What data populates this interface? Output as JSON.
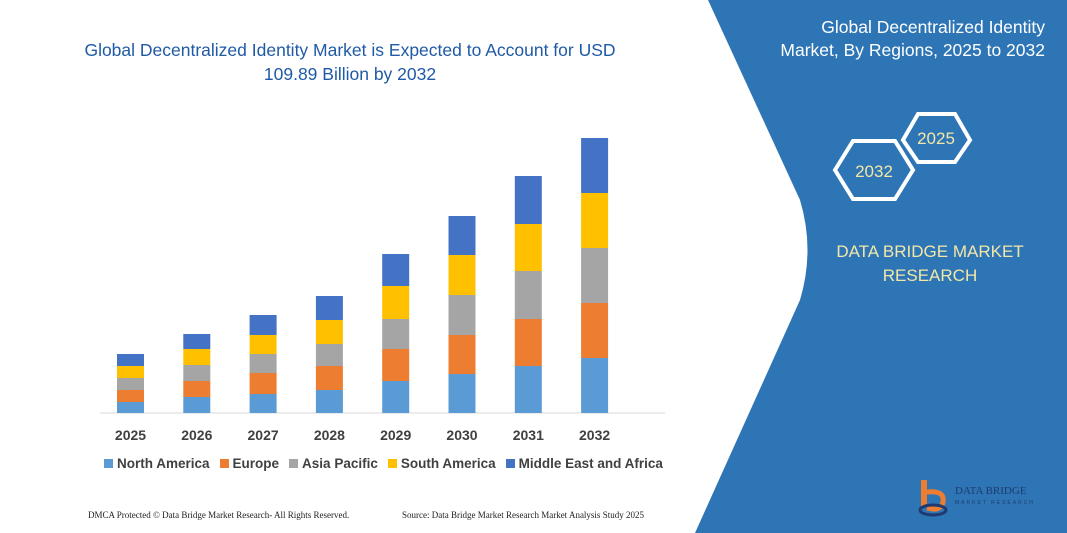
{
  "chart_data": {
    "type": "bar",
    "stacked": true,
    "title": "Global Decentralized Identity Market is Expected to Account for USD 109.89 Billion by 2032",
    "categories": [
      "2025",
      "2026",
      "2027",
      "2028",
      "2029",
      "2030",
      "2031",
      "2032"
    ],
    "series": [
      {
        "name": "North America",
        "color": "#5b9bd5",
        "values": [
          11,
          16,
          19,
          23,
          32,
          39,
          47,
          55
        ]
      },
      {
        "name": "Europe",
        "color": "#ed7d31",
        "values": [
          12,
          16,
          21,
          24,
          32,
          39,
          47,
          55
        ]
      },
      {
        "name": "Asia Pacific",
        "color": "#a5a5a5",
        "values": [
          12,
          16,
          19,
          22,
          30,
          40,
          48,
          55
        ]
      },
      {
        "name": "South America",
        "color": "#ffc000",
        "values": [
          12,
          16,
          19,
          24,
          33,
          40,
          47,
          55
        ]
      },
      {
        "name": "Middle East and Africa",
        "color": "#4472c4",
        "values": [
          12,
          15,
          20,
          24,
          32,
          39,
          48,
          55
        ]
      }
    ],
    "yaxis_visible": false,
    "grid": false,
    "legend": "bottom"
  },
  "side_panel": {
    "title": "Global Decentralized Identity Market, By Regions, 2025 to 2032",
    "hex_start": "2025",
    "hex_end": "2032",
    "brand": "DATA BRIDGE MARKET RESEARCH",
    "color": "#2e75b6"
  },
  "footer": {
    "left": "DMCA Protected © Data Bridge Market Research-  All Rights Reserved.",
    "right": "Source: Data Bridge Market Research  Market Analysis Study 2025"
  },
  "logo": {
    "text": "DATA BRIDGE",
    "sub": "MARKET RESEARCH"
  }
}
